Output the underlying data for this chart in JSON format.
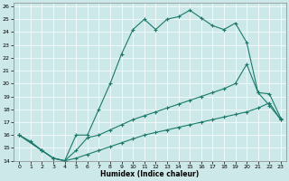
{
  "xlabel": "Humidex (Indice chaleur)",
  "bg_color": "#cde8e8",
  "line_color": "#1a7a6a",
  "grid_color": "#ffffff",
  "xlim": [
    -0.5,
    23.5
  ],
  "ylim": [
    14,
    26.3
  ],
  "yticks": [
    14,
    15,
    16,
    17,
    18,
    19,
    20,
    21,
    22,
    23,
    24,
    25,
    26
  ],
  "xticks": [
    0,
    1,
    2,
    3,
    4,
    5,
    6,
    7,
    8,
    9,
    10,
    11,
    12,
    13,
    14,
    15,
    16,
    17,
    18,
    19,
    20,
    21,
    22,
    23
  ],
  "line1_x": [
    0,
    1,
    2,
    3,
    4,
    5,
    6,
    7,
    8,
    9,
    10,
    11,
    12,
    13,
    14,
    15,
    16,
    17,
    18,
    19,
    20,
    21,
    22,
    23
  ],
  "line1_y": [
    16.0,
    15.5,
    14.8,
    14.2,
    14.0,
    16.0,
    16.0,
    18.0,
    20.0,
    22.3,
    24.2,
    25.0,
    24.2,
    25.0,
    25.2,
    25.7,
    25.1,
    24.5,
    24.2,
    24.7,
    23.2,
    19.3,
    18.3,
    17.2
  ],
  "line2_x": [
    0,
    2,
    3,
    4,
    5,
    6,
    7,
    8,
    9,
    10,
    11,
    12,
    13,
    14,
    15,
    16,
    17,
    18,
    19,
    20,
    21,
    22,
    23
  ],
  "line2_y": [
    16.0,
    14.8,
    14.2,
    14.0,
    14.8,
    15.8,
    16.0,
    16.4,
    16.8,
    17.2,
    17.5,
    17.8,
    18.1,
    18.4,
    18.7,
    19.0,
    19.3,
    19.6,
    20.0,
    21.5,
    19.3,
    19.2,
    17.3
  ],
  "line3_x": [
    0,
    2,
    3,
    4,
    5,
    6,
    7,
    8,
    9,
    10,
    11,
    12,
    13,
    14,
    15,
    16,
    17,
    18,
    19,
    20,
    21,
    22,
    23
  ],
  "line3_y": [
    16.0,
    14.8,
    14.2,
    14.0,
    14.2,
    14.5,
    14.8,
    15.1,
    15.4,
    15.7,
    16.0,
    16.2,
    16.4,
    16.6,
    16.8,
    17.0,
    17.2,
    17.4,
    17.6,
    17.8,
    18.1,
    18.5,
    17.2
  ]
}
